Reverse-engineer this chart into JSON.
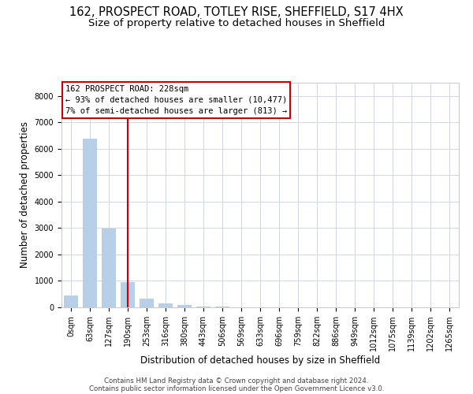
{
  "title_line1": "162, PROSPECT ROAD, TOTLEY RISE, SHEFFIELD, S17 4HX",
  "title_line2": "Size of property relative to detached houses in Sheffield",
  "xlabel": "Distribution of detached houses by size in Sheffield",
  "ylabel": "Number of detached properties",
  "categories": [
    "0sqm",
    "63sqm",
    "127sqm",
    "190sqm",
    "253sqm",
    "316sqm",
    "380sqm",
    "443sqm",
    "506sqm",
    "569sqm",
    "633sqm",
    "696sqm",
    "759sqm",
    "822sqm",
    "886sqm",
    "949sqm",
    "1012sqm",
    "1075sqm",
    "1139sqm",
    "1202sqm",
    "1265sqm"
  ],
  "values": [
    440,
    6380,
    2980,
    960,
    330,
    155,
    75,
    40,
    22,
    13,
    9,
    7,
    5,
    3,
    3,
    2,
    2,
    1,
    1,
    1,
    1
  ],
  "bar_color": "#b8cfe8",
  "highlight_color": "#cc0000",
  "vline_index": 3,
  "annotation_line1": "162 PROSPECT ROAD: 228sqm",
  "annotation_line2": "← 93% of detached houses are smaller (10,477)",
  "annotation_line3": "7% of semi-detached houses are larger (813) →",
  "ylim_min": 0,
  "ylim_max": 8500,
  "yticks": [
    0,
    1000,
    2000,
    3000,
    4000,
    5000,
    6000,
    7000,
    8000
  ],
  "footnote_line1": "Contains HM Land Registry data © Crown copyright and database right 2024.",
  "footnote_line2": "Contains public sector information licensed under the Open Government Licence v3.0.",
  "title_fontsize": 10.5,
  "subtitle_fontsize": 9.5,
  "tick_fontsize": 7,
  "ylabel_fontsize": 8.5,
  "xlabel_fontsize": 8.5,
  "annot_fontsize": 7.5,
  "footnote_fontsize": 6.2
}
